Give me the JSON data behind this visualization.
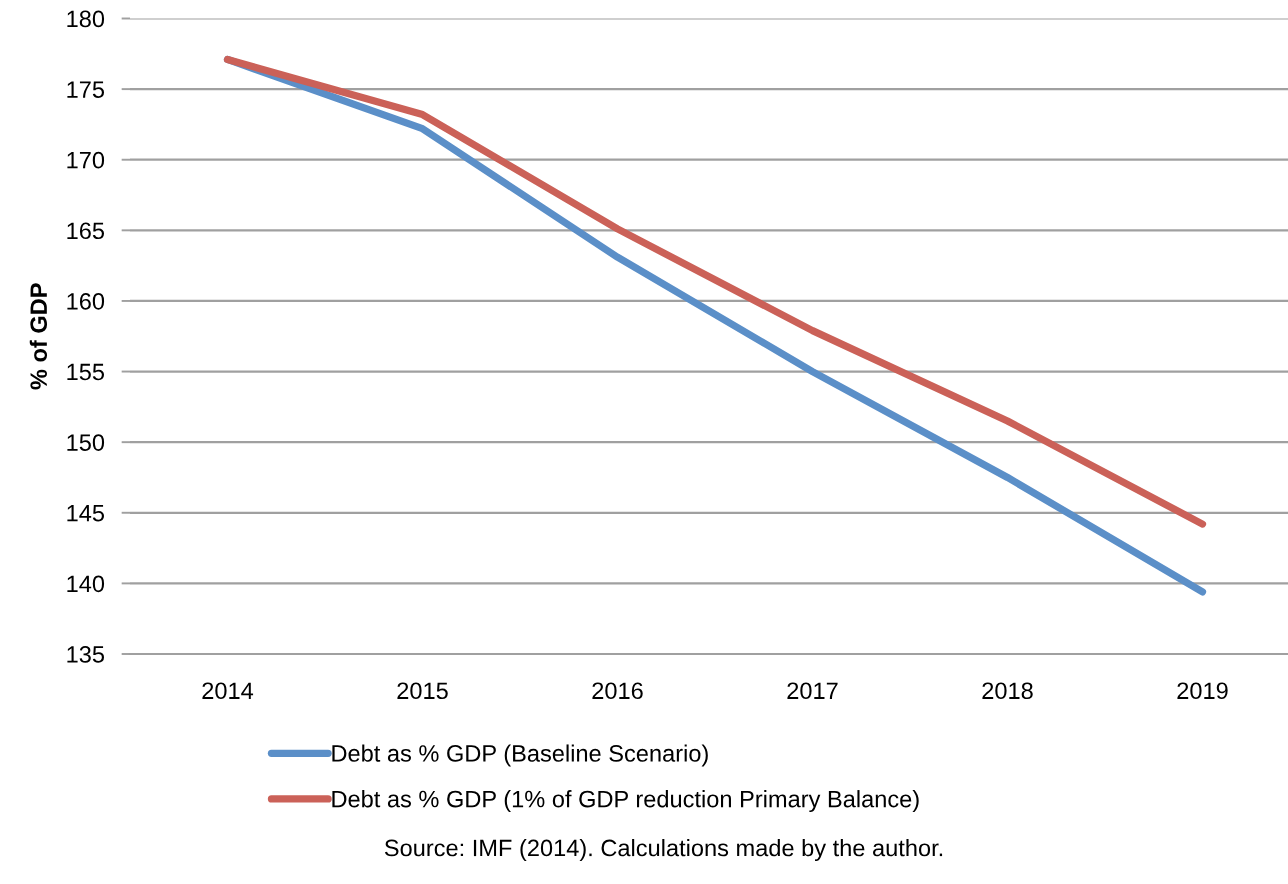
{
  "chart_data": {
    "type": "line",
    "categories": [
      "2014",
      "2015",
      "2016",
      "2017",
      "2018",
      "2019"
    ],
    "series": [
      {
        "name": "Debt as % GDP (Baseline Scenario)",
        "color": "#5b8fc8",
        "values": [
          177.1,
          172.2,
          163.1,
          155.0,
          147.5,
          139.4
        ]
      },
      {
        "name": "Debt as % GDP (1% of GDP reduction Primary Balance)",
        "color": "#cb6158",
        "values": [
          177.1,
          173.2,
          165.1,
          157.9,
          151.5,
          144.2
        ]
      }
    ],
    "ylabel": "% of GDP",
    "ylim": [
      135,
      180
    ],
    "yticks": [
      135,
      140,
      145,
      150,
      155,
      160,
      165,
      170,
      175,
      180
    ],
    "grid": "y",
    "legend": "bottom",
    "marker": "none",
    "line_style": "solid",
    "annotations": [
      "Source: IMF (2014). Calculations made by the author."
    ]
  }
}
